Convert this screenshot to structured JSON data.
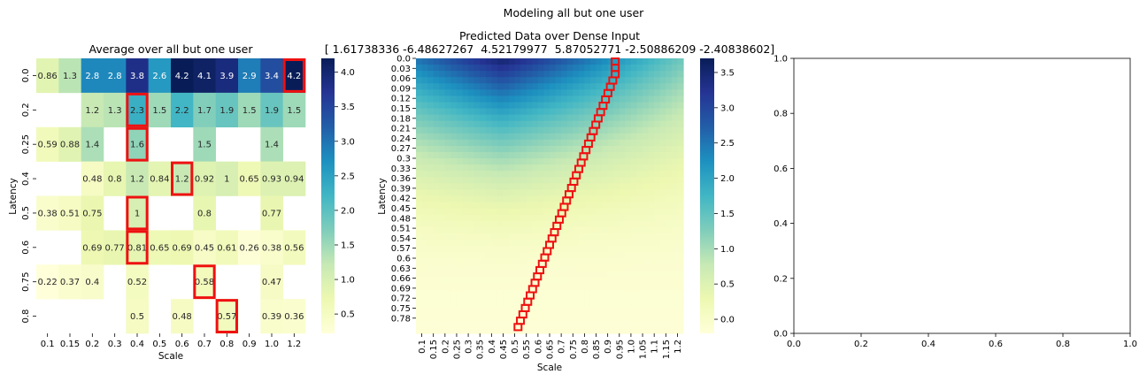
{
  "suptitle": "Modeling all but one user",
  "chart_data": [
    {
      "type": "heatmap",
      "title": "Average over all but one user",
      "xlabel": "Scale",
      "ylabel": "Latency",
      "x_ticks": [
        "0.1",
        "0.15",
        "0.2",
        "0.3",
        "0.4",
        "0.5",
        "0.6",
        "0.7",
        "0.8",
        "0.9",
        "1.0",
        "1.2"
      ],
      "y_ticks": [
        "0.0",
        "0.2",
        "0.25",
        "0.4",
        "0.5",
        "0.6",
        "0.75",
        "0.8"
      ],
      "values": [
        [
          0.86,
          1.3,
          2.8,
          2.8,
          3.8,
          2.6,
          4.2,
          4.1,
          3.9,
          2.9,
          3.4,
          4.2
        ],
        [
          null,
          null,
          1.2,
          1.3,
          2.3,
          1.5,
          2.2,
          1.7,
          1.9,
          1.5,
          1.9,
          1.5
        ],
        [
          0.59,
          0.88,
          1.4,
          null,
          1.6,
          null,
          null,
          1.5,
          null,
          null,
          1.4,
          null
        ],
        [
          null,
          null,
          0.48,
          0.8,
          1.2,
          0.84,
          1.2,
          0.92,
          1,
          0.65,
          0.93,
          0.94
        ],
        [
          0.38,
          0.51,
          0.75,
          null,
          1,
          null,
          null,
          0.8,
          null,
          null,
          0.77,
          null
        ],
        [
          null,
          null,
          0.69,
          0.77,
          0.81,
          0.65,
          0.69,
          0.45,
          0.61,
          0.26,
          0.38,
          0.56
        ],
        [
          0.22,
          0.37,
          0.4,
          null,
          0.52,
          null,
          null,
          0.58,
          null,
          null,
          0.47,
          null
        ],
        [
          null,
          null,
          null,
          null,
          0.5,
          null,
          0.48,
          null,
          0.57,
          null,
          0.39,
          0.36
        ]
      ],
      "highlighted_cells": [
        [
          0,
          11
        ],
        [
          1,
          4
        ],
        [
          2,
          4
        ],
        [
          3,
          6
        ],
        [
          4,
          4
        ],
        [
          5,
          4
        ],
        [
          6,
          7
        ],
        [
          7,
          8
        ]
      ],
      "highlight_color": "#ee1111",
      "colorbar": {
        "ticks": [
          "0.5",
          "1.0",
          "1.5",
          "2.0",
          "2.5",
          "3.0",
          "3.5",
          "4.0"
        ],
        "range": [
          0.22,
          4.2
        ],
        "colormap": "YlGnBu"
      }
    },
    {
      "type": "heatmap",
      "title": "Predicted Data over Dense Input",
      "subtitle": "[ 1.61738336 -6.48627267  4.52179977  5.87052771 -2.50886209 -2.40838602]",
      "xlabel": "Scale",
      "ylabel": "Latency",
      "x_ticks": [
        "0.1",
        "0.15",
        "0.2",
        "0.25",
        "0.3",
        "0.35",
        "0.4",
        "0.45",
        "0.5",
        "0.55",
        "0.6",
        "0.65",
        "0.7",
        "0.75",
        "0.8",
        "0.85",
        "0.9",
        "0.95",
        "1.0",
        "1.05",
        "1.1",
        "1.15",
        "1.2"
      ],
      "y_ticks": [
        "0.0",
        "0.03",
        "0.06",
        "0.09",
        "0.12",
        "0.15",
        "0.18",
        "0.21",
        "0.24",
        "0.27",
        "0.3",
        "0.33",
        "0.36",
        "0.39",
        "0.42",
        "0.45",
        "0.48",
        "0.51",
        "0.54",
        "0.57",
        "0.6",
        "0.63",
        "0.66",
        "0.69",
        "0.72",
        "0.75",
        "0.78"
      ],
      "highlighted_scale_by_row": [
        0.92,
        0.92,
        0.92,
        0.91,
        0.9,
        0.89,
        0.88,
        0.87,
        0.86,
        0.85,
        0.84,
        0.83,
        0.82,
        0.81,
        0.8,
        0.79,
        0.78,
        0.77,
        0.76,
        0.75,
        0.74,
        0.73,
        0.72,
        0.71,
        0.7,
        0.69,
        0.68,
        0.67,
        0.66,
        0.65,
        0.64,
        0.63,
        0.62,
        0.61,
        0.6,
        0.59,
        0.58,
        0.57,
        0.56,
        0.55,
        0.54,
        0.53,
        0.52
      ],
      "highlight_color": "#ee1111",
      "colorbar": {
        "ticks": [
          "0.0",
          "0.5",
          "1.0",
          "1.5",
          "2.0",
          "2.5",
          "3.0",
          "3.5"
        ],
        "range": [
          -0.2,
          3.7
        ],
        "colormap": "YlGnBu"
      }
    },
    {
      "type": "scatter",
      "title": "",
      "x": [],
      "y": [],
      "xlim": [
        0,
        1
      ],
      "ylim": [
        0,
        1
      ],
      "x_ticks": [
        "0.0",
        "0.2",
        "0.4",
        "0.6",
        "0.8",
        "1.0"
      ],
      "y_ticks": [
        "0.0",
        "0.2",
        "0.4",
        "0.6",
        "0.8",
        "1.0"
      ]
    }
  ]
}
